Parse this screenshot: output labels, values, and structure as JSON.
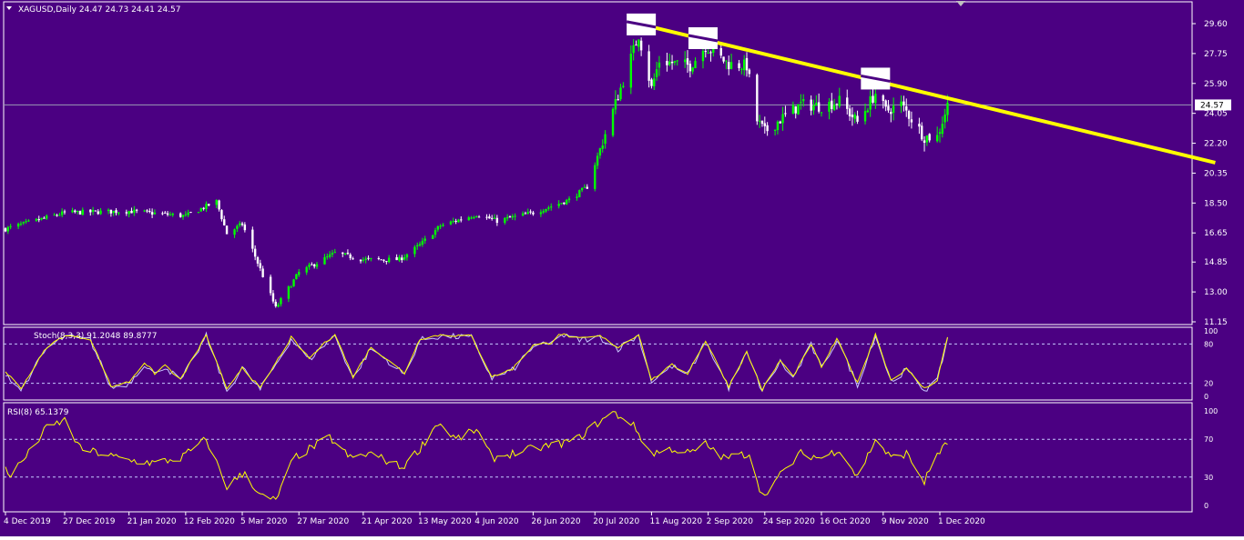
{
  "chart_data": {
    "type": "candlestick",
    "symbol_header": "XAGUSD,Daily  24.47 24.73 24.41 24.57",
    "current_price_label": "24.57",
    "colors": {
      "background": "#4b0082",
      "candle_up": "#00ff00",
      "candle_down": "#ffffff",
      "trendline": "#ffff00",
      "stoch_main": "#ffff00",
      "stoch_signal": "#c8c8ff",
      "rsi": "#ffff00",
      "axis_text": "#ffffff"
    },
    "price_panel": {
      "y_ticks": [
        "29.60",
        "27.75",
        "25.90",
        "24.05",
        "22.20",
        "20.35",
        "18.50",
        "16.65",
        "14.85",
        "13.00",
        "11.15"
      ],
      "ylim": [
        11.15,
        30.5
      ],
      "current_price": 24.57,
      "anchors": [
        [
          "2019-12-04",
          16.9
        ],
        [
          "2019-12-27",
          17.9
        ],
        [
          "2020-01-21",
          18.0
        ],
        [
          "2020-02-12",
          17.7
        ],
        [
          "2020-02-24",
          18.6
        ],
        [
          "2020-02-28",
          16.6
        ],
        [
          "2020-03-05",
          17.2
        ],
        [
          "2020-03-18",
          12.0
        ],
        [
          "2020-03-27",
          14.2
        ],
        [
          "2020-04-10",
          15.4
        ],
        [
          "2020-04-21",
          15.0
        ],
        [
          "2020-05-05",
          15.0
        ],
        [
          "2020-05-13",
          15.9
        ],
        [
          "2020-05-21",
          17.1
        ],
        [
          "2020-06-04",
          17.8
        ],
        [
          "2020-06-12",
          17.4
        ],
        [
          "2020-06-26",
          17.9
        ],
        [
          "2020-07-10",
          18.7
        ],
        [
          "2020-07-17",
          19.5
        ],
        [
          "2020-07-27",
          24.2
        ],
        [
          "2020-08-06",
          28.9
        ],
        [
          "2020-08-11",
          25.6
        ],
        [
          "2020-08-14",
          27.3
        ],
        [
          "2020-08-26",
          27.0
        ],
        [
          "2020-09-01",
          28.2
        ],
        [
          "2020-09-10",
          27.1
        ],
        [
          "2020-09-17",
          27.0
        ],
        [
          "2020-09-21",
          23.6
        ],
        [
          "2020-09-24",
          22.9
        ],
        [
          "2020-10-01",
          23.8
        ],
        [
          "2020-10-08",
          24.6
        ],
        [
          "2020-10-16",
          24.5
        ],
        [
          "2020-10-23",
          24.8
        ],
        [
          "2020-10-30",
          23.5
        ],
        [
          "2020-11-06",
          25.3
        ],
        [
          "2020-11-10",
          24.2
        ],
        [
          "2020-11-16",
          24.6
        ],
        [
          "2020-11-25",
          22.6
        ],
        [
          "2020-11-30",
          22.6
        ],
        [
          "2020-12-04",
          24.57
        ]
      ],
      "trendline": {
        "start": [
          "2020-08-07",
          29.55
        ],
        "end": [
          "2021-03-18",
          21.0
        ]
      },
      "highlight_boxes": [
        [
          "2020-08-07",
          29.55
        ],
        [
          "2020-08-31",
          28.7
        ],
        [
          "2020-11-06",
          26.2
        ]
      ]
    },
    "stoch_panel": {
      "label": "Stoch(8,3,3) 91.2048 89.8777",
      "y_ticks": [
        "100",
        "80",
        "20",
        "0"
      ],
      "levels": [
        80,
        20
      ],
      "ylim": [
        0,
        100
      ],
      "anchors": [
        [
          "2019-12-04",
          38
        ],
        [
          "2019-12-10",
          12
        ],
        [
          "2019-12-20",
          75
        ],
        [
          "2019-12-27",
          93
        ],
        [
          "2020-01-06",
          88
        ],
        [
          "2020-01-14",
          15
        ],
        [
          "2020-01-21",
          22
        ],
        [
          "2020-01-27",
          52
        ],
        [
          "2020-01-31",
          35
        ],
        [
          "2020-02-04",
          48
        ],
        [
          "2020-02-10",
          25
        ],
        [
          "2020-02-20",
          94
        ],
        [
          "2020-02-28",
          10
        ],
        [
          "2020-03-05",
          45
        ],
        [
          "2020-03-12",
          12
        ],
        [
          "2020-03-24",
          90
        ],
        [
          "2020-03-31",
          58
        ],
        [
          "2020-04-07",
          85
        ],
        [
          "2020-04-10",
          95
        ],
        [
          "2020-04-17",
          30
        ],
        [
          "2020-04-24",
          75
        ],
        [
          "2020-05-01",
          55
        ],
        [
          "2020-05-07",
          35
        ],
        [
          "2020-05-13",
          88
        ],
        [
          "2020-05-21",
          94
        ],
        [
          "2020-06-02",
          92
        ],
        [
          "2020-06-10",
          30
        ],
        [
          "2020-06-18",
          42
        ],
        [
          "2020-06-26",
          78
        ],
        [
          "2020-07-03",
          82
        ],
        [
          "2020-07-06",
          96
        ],
        [
          "2020-07-14",
          88
        ],
        [
          "2020-07-22",
          92
        ],
        [
          "2020-07-29",
          75
        ],
        [
          "2020-08-06",
          95
        ],
        [
          "2020-08-11",
          25
        ],
        [
          "2020-08-19",
          48
        ],
        [
          "2020-08-25",
          35
        ],
        [
          "2020-09-01",
          85
        ],
        [
          "2020-09-10",
          15
        ],
        [
          "2020-09-17",
          68
        ],
        [
          "2020-09-23",
          10
        ],
        [
          "2020-09-30",
          55
        ],
        [
          "2020-10-05",
          30
        ],
        [
          "2020-10-12",
          80
        ],
        [
          "2020-10-16",
          45
        ],
        [
          "2020-10-22",
          88
        ],
        [
          "2020-10-30",
          20
        ],
        [
          "2020-11-06",
          95
        ],
        [
          "2020-11-12",
          25
        ],
        [
          "2020-11-18",
          42
        ],
        [
          "2020-11-25",
          12
        ],
        [
          "2020-11-30",
          25
        ],
        [
          "2020-12-04",
          91
        ]
      ]
    },
    "rsi_panel": {
      "label": "RSI(8) 65.1379",
      "y_ticks": [
        "100",
        "70",
        "30",
        "0"
      ],
      "levels": [
        70,
        30
      ],
      "ylim": [
        0,
        100
      ],
      "anchors": [
        [
          "2019-12-04",
          40
        ],
        [
          "2019-12-06",
          32
        ],
        [
          "2019-12-13",
          55
        ],
        [
          "2019-12-20",
          82
        ],
        [
          "2019-12-27",
          90
        ],
        [
          "2020-01-02",
          60
        ],
        [
          "2020-01-10",
          55
        ],
        [
          "2020-01-20",
          48
        ],
        [
          "2020-01-31",
          45
        ],
        [
          "2020-02-10",
          50
        ],
        [
          "2020-02-20",
          70
        ],
        [
          "2020-02-28",
          20
        ],
        [
          "2020-03-06",
          35
        ],
        [
          "2020-03-12",
          10
        ],
        [
          "2020-03-18",
          5
        ],
        [
          "2020-03-25",
          50
        ],
        [
          "2020-04-08",
          72
        ],
        [
          "2020-04-16",
          50
        ],
        [
          "2020-04-24",
          55
        ],
        [
          "2020-05-06",
          40
        ],
        [
          "2020-05-13",
          60
        ],
        [
          "2020-05-20",
          88
        ],
        [
          "2020-05-27",
          70
        ],
        [
          "2020-06-04",
          80
        ],
        [
          "2020-06-10",
          50
        ],
        [
          "2020-06-18",
          55
        ],
        [
          "2020-06-26",
          60
        ],
        [
          "2020-07-06",
          65
        ],
        [
          "2020-07-13",
          70
        ],
        [
          "2020-07-20",
          85
        ],
        [
          "2020-07-27",
          98
        ],
        [
          "2020-08-03",
          88
        ],
        [
          "2020-08-11",
          55
        ],
        [
          "2020-08-19",
          60
        ],
        [
          "2020-08-26",
          55
        ],
        [
          "2020-09-01",
          65
        ],
        [
          "2020-09-08",
          50
        ],
        [
          "2020-09-18",
          55
        ],
        [
          "2020-09-23",
          10
        ],
        [
          "2020-10-01",
          35
        ],
        [
          "2020-10-08",
          55
        ],
        [
          "2020-10-16",
          50
        ],
        [
          "2020-10-23",
          60
        ],
        [
          "2020-10-30",
          30
        ],
        [
          "2020-11-06",
          70
        ],
        [
          "2020-11-12",
          50
        ],
        [
          "2020-11-18",
          55
        ],
        [
          "2020-11-25",
          25
        ],
        [
          "2020-11-30",
          55
        ],
        [
          "2020-12-04",
          65
        ]
      ]
    },
    "x_ticks": [
      [
        "2019-12-04",
        "4 Dec 2019"
      ],
      [
        "2019-12-27",
        "27 Dec 2019"
      ],
      [
        "2020-01-21",
        "21 Jan 2020"
      ],
      [
        "2020-02-12",
        "12 Feb 2020"
      ],
      [
        "2020-03-05",
        "5 Mar 2020"
      ],
      [
        "2020-03-27",
        "27 Mar 2020"
      ],
      [
        "2020-04-21",
        "21 Apr 2020"
      ],
      [
        "2020-05-13",
        "13 May 2020"
      ],
      [
        "2020-06-04",
        "4 Jun 2020"
      ],
      [
        "2020-06-26",
        "26 Jun 2020"
      ],
      [
        "2020-07-20",
        "20 Jul 2020"
      ],
      [
        "2020-08-11",
        "11 Aug 2020"
      ],
      [
        "2020-09-02",
        "2 Sep 2020"
      ],
      [
        "2020-09-24",
        "24 Sep 2020"
      ],
      [
        "2020-10-16",
        "16 Oct 2020"
      ],
      [
        "2020-11-09",
        "9 Nov 2020"
      ],
      [
        "2020-12-01",
        "1 Dec 2020"
      ]
    ]
  }
}
